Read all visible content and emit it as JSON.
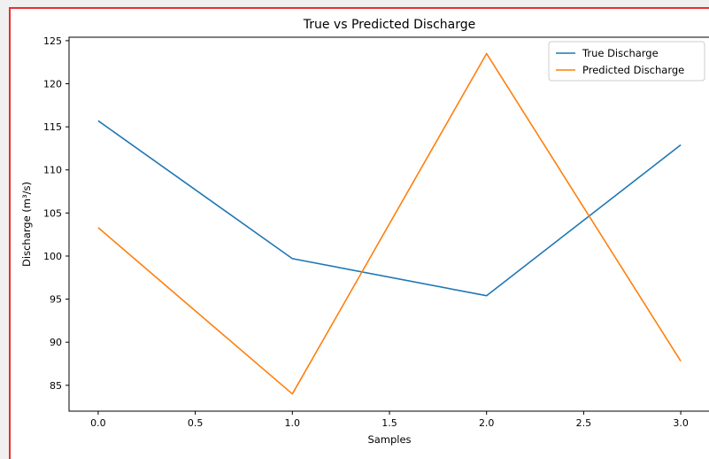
{
  "chart_data": {
    "type": "line",
    "title": "True vs Predicted Discharge",
    "xlabel": "Samples",
    "ylabel": "Discharge (m³/s)",
    "xlim": [
      -0.15,
      3.15
    ],
    "ylim": [
      82,
      125.4
    ],
    "xticks": [
      0.0,
      0.5,
      1.0,
      1.5,
      2.0,
      2.5,
      3.0
    ],
    "xtick_labels": [
      "0.0",
      "0.5",
      "1.0",
      "1.5",
      "2.0",
      "2.5",
      "3.0"
    ],
    "yticks": [
      85,
      90,
      95,
      100,
      105,
      110,
      115,
      120,
      125
    ],
    "ytick_labels": [
      "85",
      "90",
      "95",
      "100",
      "105",
      "110",
      "115",
      "120",
      "125"
    ],
    "legend_position": "top-right",
    "x": [
      0,
      1,
      2,
      3
    ],
    "series": [
      {
        "name": "True Discharge",
        "color": "#1f77b4",
        "values": [
          115.7,
          99.7,
          95.4,
          112.9
        ]
      },
      {
        "name": "Predicted Discharge",
        "color": "#ff7f0e",
        "values": [
          103.3,
          84.0,
          123.5,
          87.8
        ]
      }
    ]
  }
}
